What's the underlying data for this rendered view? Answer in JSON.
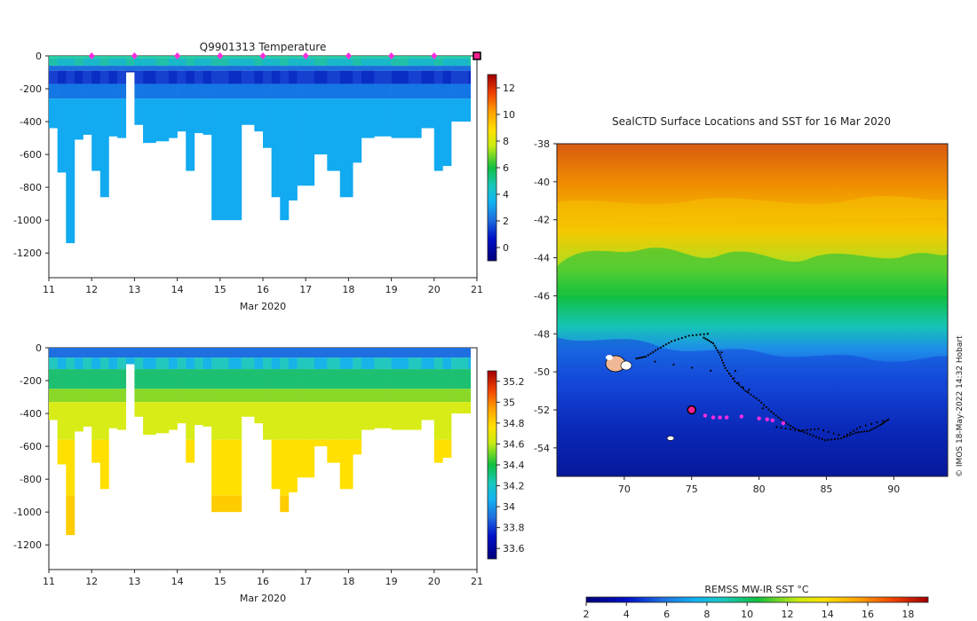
{
  "chart_data": [
    {
      "type": "heatmap",
      "title": "Q9901313  Temperature",
      "xlabel": "Mar 2020",
      "ylabel": "",
      "xlim": [
        11,
        21
      ],
      "ylim": [
        -1350,
        0
      ],
      "x_ticks": [
        "11",
        "12",
        "13",
        "14",
        "15",
        "16",
        "17",
        "18",
        "19",
        "20",
        "21"
      ],
      "y_ticks": [
        "0",
        "-200",
        "-400",
        "-600",
        "-800",
        "-1000",
        "-1200"
      ],
      "colorbar": {
        "range": [
          -1,
          13
        ],
        "ticks": [
          "0",
          "2",
          "4",
          "6",
          "8",
          "10",
          "12"
        ]
      },
      "surface_markers_days": [
        12,
        13,
        14,
        15,
        16,
        17,
        18,
        19,
        20
      ],
      "current_marker_day": 21,
      "profile_max_depths_m": [
        {
          "day": 11.0,
          "depth": 440
        },
        {
          "day": 11.2,
          "depth": 710
        },
        {
          "day": 11.4,
          "depth": 1140
        },
        {
          "day": 11.6,
          "depth": 510
        },
        {
          "day": 11.8,
          "depth": 480
        },
        {
          "day": 12.0,
          "depth": 700
        },
        {
          "day": 12.2,
          "depth": 860
        },
        {
          "day": 12.4,
          "depth": 490
        },
        {
          "day": 12.6,
          "depth": 500
        },
        {
          "day": 12.8,
          "depth": 100
        },
        {
          "day": 13.0,
          "depth": 420
        },
        {
          "day": 13.2,
          "depth": 530
        },
        {
          "day": 13.5,
          "depth": 520
        },
        {
          "day": 13.8,
          "depth": 500
        },
        {
          "day": 14.0,
          "depth": 460
        },
        {
          "day": 14.2,
          "depth": 700
        },
        {
          "day": 14.4,
          "depth": 470
        },
        {
          "day": 14.6,
          "depth": 480
        },
        {
          "day": 14.8,
          "depth": 1000
        },
        {
          "day": 15.2,
          "depth": 1000
        },
        {
          "day": 15.5,
          "depth": 420
        },
        {
          "day": 15.8,
          "depth": 460
        },
        {
          "day": 16.0,
          "depth": 560
        },
        {
          "day": 16.2,
          "depth": 860
        },
        {
          "day": 16.4,
          "depth": 1000
        },
        {
          "day": 16.6,
          "depth": 880
        },
        {
          "day": 16.8,
          "depth": 790
        },
        {
          "day": 17.2,
          "depth": 600
        },
        {
          "day": 17.5,
          "depth": 700
        },
        {
          "day": 17.8,
          "depth": 860
        },
        {
          "day": 18.1,
          "depth": 650
        },
        {
          "day": 18.3,
          "depth": 500
        },
        {
          "day": 18.6,
          "depth": 490
        },
        {
          "day": 19.0,
          "depth": 500
        },
        {
          "day": 19.4,
          "depth": 500
        },
        {
          "day": 19.7,
          "depth": 440
        },
        {
          "day": 20.0,
          "depth": 700
        },
        {
          "day": 20.2,
          "depth": 670
        },
        {
          "day": 20.4,
          "depth": 400
        },
        {
          "day": 20.8,
          "depth": 400
        }
      ]
    },
    {
      "type": "heatmap",
      "title": "",
      "xlabel": "Mar 2020",
      "ylabel": "",
      "xlim": [
        11,
        21
      ],
      "ylim": [
        -1350,
        0
      ],
      "x_ticks": [
        "11",
        "12",
        "13",
        "14",
        "15",
        "16",
        "17",
        "18",
        "19",
        "20",
        "21"
      ],
      "y_ticks": [
        "0",
        "-200",
        "-400",
        "-600",
        "-800",
        "-1000",
        "-1200"
      ],
      "colorbar": {
        "range": [
          33.5,
          35.3
        ],
        "ticks": [
          "33.6",
          "33.8",
          "34",
          "34.2",
          "34.4",
          "34.6",
          "34.8",
          "35",
          "35.2"
        ]
      }
    },
    {
      "type": "heatmap",
      "title": "SealCTD Surface Locations and SST for 16 Mar 2020",
      "xlabel": "",
      "ylabel": "",
      "xlim": [
        65,
        94
      ],
      "ylim": [
        -55.5,
        -38
      ],
      "x_ticks": [
        "70",
        "75",
        "80",
        "85",
        "90"
      ],
      "y_ticks": [
        "-38",
        "-40",
        "-42",
        "-44",
        "-46",
        "-48",
        "-50",
        "-52",
        "-54"
      ],
      "colorbar": {
        "label": "REMSS MW-IR SST °C",
        "range": [
          2,
          19
        ],
        "ticks": [
          "2",
          "4",
          "6",
          "8",
          "10",
          "12",
          "14",
          "16",
          "18"
        ]
      },
      "track_points": [
        [
          75.9,
          -48.2
        ],
        [
          76.6,
          -48.5
        ],
        [
          77.1,
          -49.1
        ],
        [
          77.5,
          -49.8
        ],
        [
          78.2,
          -50.5
        ],
        [
          79.0,
          -51.0
        ],
        [
          80.0,
          -51.5
        ],
        [
          80.9,
          -52.1
        ],
        [
          81.8,
          -52.6
        ],
        [
          82.7,
          -53.0
        ],
        [
          83.8,
          -53.3
        ],
        [
          84.9,
          -53.6
        ],
        [
          86.1,
          -53.5
        ],
        [
          87.2,
          -53.2
        ],
        [
          88.2,
          -53.1
        ],
        [
          89.0,
          -52.8
        ],
        [
          89.6,
          -52.5
        ],
        [
          87.5,
          -52.9
        ],
        [
          86.3,
          -53.4
        ],
        [
          84.4,
          -53.0
        ],
        [
          83.0,
          -53.1
        ],
        [
          81.3,
          -52.9
        ],
        [
          76.2,
          -48.0
        ],
        [
          74.8,
          -48.1
        ],
        [
          73.5,
          -48.4
        ],
        [
          72.5,
          -48.8
        ],
        [
          71.6,
          -49.2
        ],
        [
          70.9,
          -49.3
        ],
        [
          77.8,
          -50.1
        ],
        [
          79.5,
          -51.3
        ]
      ],
      "recent_positions": [
        [
          76.0,
          -52.3
        ],
        [
          76.6,
          -52.4
        ],
        [
          77.1,
          -52.4
        ],
        [
          77.6,
          -52.4
        ],
        [
          78.7,
          -52.35
        ],
        [
          80.0,
          -52.45
        ],
        [
          80.6,
          -52.5
        ],
        [
          81.0,
          -52.55
        ],
        [
          81.8,
          -52.7
        ]
      ],
      "current_position": [
        75.0,
        -52.0
      ],
      "land_patches": [
        "Heard Island",
        "McDonald Islands"
      ]
    }
  ],
  "credit": "© IMOS 18-May-2022 14:32 Hobart"
}
